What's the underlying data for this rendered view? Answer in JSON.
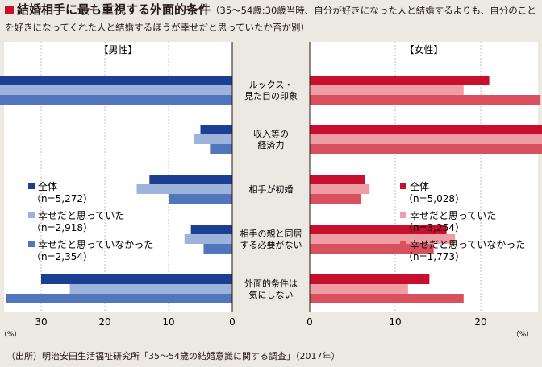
{
  "title": {
    "main": "結婚相手に最も重視する外面的条件",
    "sub": "（35～54歳:30歳当時、自分が好きになった人と結婚するよりも、自分のことを好きになってくれた人と結婚するほうが幸せだと思っていたか否か別）"
  },
  "source": "（出所）明治安田生活福祉研究所「35～54歳の結婚意識に関する調査」（2017年）",
  "colors": {
    "male": [
      "#1a3f93",
      "#9db3dc",
      "#5176be"
    ],
    "female": [
      "#c8102e",
      "#ee9da5",
      "#d9515e"
    ],
    "background": "#ece8e2",
    "panel": "#ffffff"
  },
  "chart_data": {
    "type": "bar",
    "orientation": "horizontal",
    "categories": [
      "ルックス・\n見た目の印象",
      "収入等の\n経済力",
      "相手が初婚",
      "相手の親と同居\nする必要がない",
      "外面的条件は\n気にしない"
    ],
    "xlim": [
      0,
      50
    ],
    "ticks": [
      "50",
      "40",
      "30",
      "20",
      "10",
      "0"
    ],
    "female_ticks": [
      "0",
      "10",
      "20",
      "30",
      "40",
      "50"
    ],
    "unit": "（%）",
    "male": {
      "title": "【男性】",
      "series": [
        {
          "name": "全体",
          "n": "（n=5,272）",
          "values": [
            44.5,
            5.0,
            13.0,
            6.5,
            30.0
          ]
        },
        {
          "name": "幸せだと思っていた",
          "n": "（n=2,918）",
          "values": [
            44.5,
            6.0,
            15.0,
            7.5,
            25.5
          ]
        },
        {
          "name": "幸せだと思っていなかった",
          "n": "（n=2,354）",
          "values": [
            44.5,
            3.5,
            10.0,
            4.5,
            35.5
          ]
        }
      ]
    },
    "female": {
      "title": "【女性】",
      "series": [
        {
          "name": "全体",
          "n": "（n=5,028）",
          "values": [
            21.0,
            37.5,
            6.5,
            16.0,
            14.0
          ]
        },
        {
          "name": "幸せだと思っていた",
          "n": "（n=3,254）",
          "values": [
            18.0,
            41.5,
            7.0,
            17.0,
            11.5
          ]
        },
        {
          "name": "幸せだと思っていなかった",
          "n": "（n=1,773）",
          "values": [
            27.0,
            29.5,
            6.0,
            14.5,
            18.0
          ]
        }
      ]
    }
  }
}
